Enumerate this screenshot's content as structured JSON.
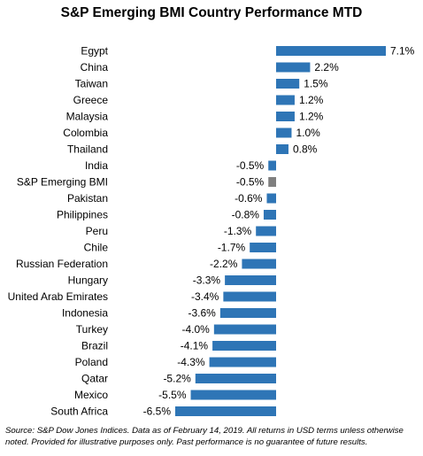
{
  "chart_data": {
    "type": "bar",
    "orientation": "horizontal",
    "title": "S&P Emerging BMI Country Performance MTD",
    "xlabel": "",
    "ylabel": "",
    "value_format": "{v}%",
    "highlight_color": "#7f7f7f",
    "bar_color": "#2e75b6",
    "categories": [
      "Egypt",
      "China",
      "Taiwan",
      "Greece",
      "Malaysia",
      "Colombia",
      "Thailand",
      "India",
      "S&P Emerging BMI",
      "Pakistan",
      "Philippines",
      "Peru",
      "Chile",
      "Russian Federation",
      "Hungary",
      "United Arab Emirates",
      "Indonesia",
      "Turkey",
      "Brazil",
      "Poland",
      "Qatar",
      "Mexico",
      "South Africa"
    ],
    "values": [
      7.1,
      2.2,
      1.5,
      1.2,
      1.2,
      1.0,
      0.8,
      -0.5,
      -0.5,
      -0.6,
      -0.8,
      -1.3,
      -1.7,
      -2.2,
      -3.3,
      -3.4,
      -3.6,
      -4.0,
      -4.1,
      -4.3,
      -5.2,
      -5.5,
      -6.5
    ],
    "labels": [
      "7.1%",
      "2.2%",
      "1.5%",
      "1.2%",
      "1.2%",
      "1.0%",
      "0.8%",
      "-0.5%",
      "-0.5%",
      "-0.6%",
      "-0.8%",
      "-1.3%",
      "-1.7%",
      "-2.2%",
      "-3.3%",
      "-3.4%",
      "-3.6%",
      "-4.0%",
      "-4.1%",
      "-4.3%",
      "-5.2%",
      "-5.5%",
      "-6.5%"
    ],
    "highlight_categories": [
      "S&P Emerging BMI"
    ],
    "xlim": [
      -6.5,
      7.1
    ],
    "grid": false,
    "legend": "none"
  },
  "footnote": {
    "line1": "Source: S&P Dow Jones Indices.  Data as of February 14, 2019.  All returns in USD terms unless otherwise",
    "line2": "noted. Provided for illustrative purposes only.  Past performance is no guarantee of future results."
  }
}
